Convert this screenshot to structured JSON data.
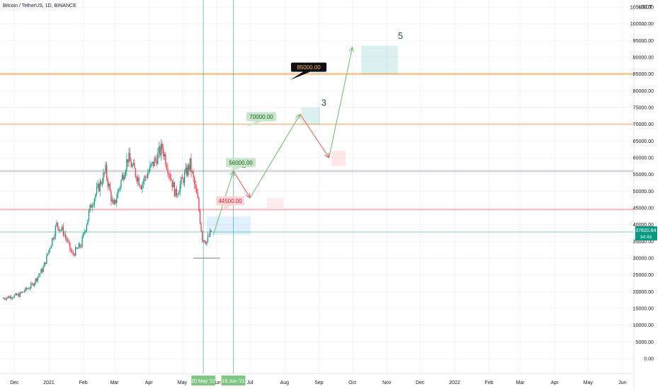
{
  "header": {
    "symbol": "Bitcoin / TetherUS, 1D, BINANCE",
    "currency": "USDT"
  },
  "price_badge": {
    "value": "37820.84",
    "countdown": "34:43"
  },
  "date_markers": [
    "20 May '21",
    "16 Jun '21"
  ],
  "wave_labels": [
    "1",
    "3",
    "5"
  ],
  "targets": [
    {
      "label": "44500.00",
      "kind": "resistance-red"
    },
    {
      "label": "56000.00",
      "kind": "target-green"
    },
    {
      "label": "70000.00",
      "kind": "target-green"
    },
    {
      "label": "85000.00",
      "kind": "target-black"
    }
  ],
  "colors": {
    "orange": "#f57c00",
    "green": "#089981",
    "red": "#f23645",
    "grey": "#9598a1"
  },
  "chart_data": {
    "type": "candlestick",
    "ylim": [
      -5000,
      110000
    ],
    "y_ticks": [
      "105000.00",
      "100000.00",
      "95000.00",
      "90000.00",
      "85000.00",
      "80000.00",
      "75000.00",
      "70000.00",
      "65000.00",
      "60000.00",
      "55000.00",
      "50000.00",
      "45000.00",
      "40000.00",
      "35000.00",
      "30000.00",
      "25000.00",
      "20000.00",
      "15000.00",
      "10000.00",
      "5000.00",
      "0.00"
    ],
    "x_ticks": [
      "Dec",
      "2021",
      "Feb",
      "Mar",
      "Apr",
      "May",
      "Jun",
      "Jul",
      "Aug",
      "Sep",
      "Oct",
      "Nov",
      "Dec",
      "2022",
      "Feb",
      "Mar",
      "Apr",
      "May",
      "Jun"
    ],
    "x_tick_dates": [
      "2020-12-01",
      "2021-01-01",
      "2021-02-01",
      "2021-03-01",
      "2021-04-01",
      "2021-05-01",
      "2021-06-01",
      "2021-07-01",
      "2021-08-01",
      "2021-09-01",
      "2021-10-01",
      "2021-11-01",
      "2021-12-01",
      "2022-01-01",
      "2022-02-01",
      "2022-03-01",
      "2022-04-01",
      "2022-05-01",
      "2022-06-01"
    ],
    "price_path": [
      [
        "2020-11-20",
        18000
      ],
      [
        "2020-12-05",
        19000
      ],
      [
        "2020-12-17",
        22000
      ],
      [
        "2020-12-27",
        27000
      ],
      [
        "2021-01-08",
        40000
      ],
      [
        "2021-01-14",
        38000
      ],
      [
        "2021-01-22",
        31000
      ],
      [
        "2021-01-30",
        34000
      ],
      [
        "2021-02-08",
        46000
      ],
      [
        "2021-02-21",
        56000
      ],
      [
        "2021-02-28",
        45000
      ],
      [
        "2021-03-13",
        60000
      ],
      [
        "2021-03-25",
        52000
      ],
      [
        "2021-04-13",
        63000
      ],
      [
        "2021-04-25",
        49000
      ],
      [
        "2021-05-08",
        58000
      ],
      [
        "2021-05-15",
        47000
      ],
      [
        "2021-05-19",
        36000
      ],
      [
        "2021-05-23",
        35000
      ],
      [
        "2021-05-27",
        38000
      ]
    ],
    "horizontal_levels": [
      {
        "value": 85000,
        "color": "orange"
      },
      {
        "value": 70000,
        "color": "orange"
      },
      {
        "value": 56000,
        "color": "grey"
      },
      {
        "value": 44500,
        "color": "red"
      },
      {
        "value": 37820.84,
        "color": "green"
      }
    ],
    "projected_path": [
      [
        "2021-05-29",
        37000
      ],
      [
        "2021-06-16",
        56000
      ],
      [
        "2021-07-01",
        48000
      ],
      [
        "2021-08-15",
        73000
      ],
      [
        "2021-09-10",
        60000
      ],
      [
        "2021-10-01",
        93000
      ]
    ],
    "date_marker_dates": [
      "2021-05-20",
      "2021-06-16"
    ]
  }
}
